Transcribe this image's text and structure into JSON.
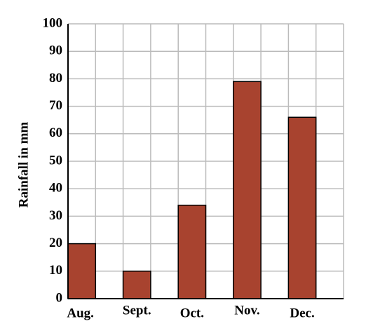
{
  "chart_data": {
    "type": "bar",
    "y_label": "Rainfall in mm",
    "categories": [
      "Aug.",
      "Sept.",
      "Oct.",
      "Nov.",
      "Dec."
    ],
    "values": [
      20,
      10,
      34,
      79,
      66
    ],
    "color": "#a8432f",
    "ylim": [
      0,
      100
    ],
    "yticks": [
      0,
      10,
      20,
      30,
      40,
      50,
      60,
      70,
      80,
      90,
      100
    ],
    "grid": true
  }
}
